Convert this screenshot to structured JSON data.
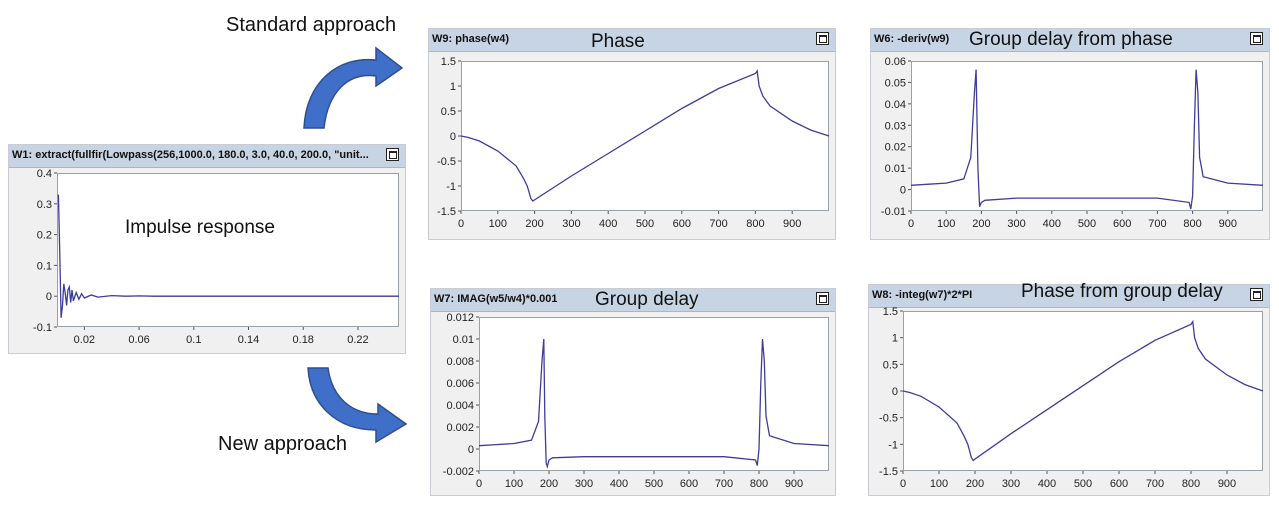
{
  "captions": {
    "standard": "Standard approach",
    "new": "New approach"
  },
  "colors": {
    "curve": "#3d3d9a",
    "arrow": "#3f6fc9",
    "titlebar": "#c6d4e4"
  },
  "windows": {
    "w1": {
      "title": "W1: extract(fullfir(Lowpass(256,1000.0, 180.0, 3.0, 40.0, 200.0, \"unit...",
      "label": "Impulse response",
      "xticks": [
        "0.02",
        "0.06",
        "0.1",
        "0.14",
        "0.18",
        "0.22"
      ],
      "yticks": [
        "0.4",
        "0.3",
        "0.2",
        "0.1",
        "0",
        "-0.1"
      ]
    },
    "w9": {
      "title": "W9: phase(w4)",
      "label": "Phase",
      "xticks": [
        "0",
        "100",
        "200",
        "300",
        "400",
        "500",
        "600",
        "700",
        "800",
        "900"
      ],
      "yticks": [
        "1.5",
        "1",
        "0.5",
        "0",
        "-0.5",
        "-1",
        "-1.5"
      ]
    },
    "w6": {
      "title": "W6: -deriv(w9)",
      "label": "Group delay from phase",
      "xticks": [
        "0",
        "100",
        "200",
        "300",
        "400",
        "500",
        "600",
        "700",
        "800",
        "900"
      ],
      "yticks": [
        "0.06",
        "0.05",
        "0.04",
        "0.03",
        "0.02",
        "0.01",
        "0",
        "-0.01"
      ]
    },
    "w7": {
      "title": "W7: IMAG(w5/w4)*0.001",
      "label": "Group delay",
      "xticks": [
        "0",
        "100",
        "200",
        "300",
        "400",
        "500",
        "600",
        "700",
        "800",
        "900"
      ],
      "yticks": [
        "0.012",
        "0.01",
        "0.008",
        "0.006",
        "0.004",
        "0.002",
        "0",
        "-0.002"
      ]
    },
    "w8": {
      "title": "W8: -integ(w7)*2*PI",
      "label": "Phase from group delay",
      "xticks": [
        "0",
        "100",
        "200",
        "300",
        "400",
        "500",
        "600",
        "700",
        "800",
        "900"
      ],
      "yticks": [
        "1.5",
        "1",
        "0.5",
        "0",
        "-0.5",
        "-1",
        "-1.5"
      ]
    }
  },
  "chart_data": [
    {
      "type": "line",
      "window": "w1",
      "x": [
        0.001,
        0.002,
        0.003,
        0.004,
        0.005,
        0.006,
        0.007,
        0.008,
        0.009,
        0.01,
        0.011,
        0.012,
        0.014,
        0.016,
        0.018,
        0.02,
        0.025,
        0.03,
        0.04,
        0.05,
        0.06,
        0.07,
        0.08,
        0.1,
        0.15,
        0.2,
        0.25
      ],
      "y": [
        0.33,
        0.15,
        -0.07,
        -0.03,
        0.04,
        0.01,
        -0.03,
        0.02,
        0.03,
        -0.02,
        0.02,
        -0.015,
        0.012,
        -0.01,
        0.008,
        -0.006,
        0.004,
        -0.003,
        0.002,
        0,
        0.001,
        0,
        0,
        0,
        0,
        0,
        0
      ],
      "xlim": [
        0,
        0.25
      ],
      "ylim": [
        -0.1,
        0.4
      ]
    },
    {
      "type": "line",
      "window": "w9",
      "x": [
        0,
        20,
        50,
        100,
        150,
        170,
        180,
        190,
        195,
        300,
        400,
        500,
        600,
        700,
        800,
        805,
        810,
        820,
        840,
        900,
        950,
        1000
      ],
      "y": [
        0,
        -0.03,
        -0.1,
        -0.3,
        -0.6,
        -0.85,
        -1.0,
        -1.25,
        -1.3,
        -0.8,
        -0.35,
        0.1,
        0.55,
        0.95,
        1.25,
        1.3,
        1.0,
        0.8,
        0.6,
        0.3,
        0.12,
        0.0
      ],
      "xlim": [
        0,
        1000
      ],
      "ylim": [
        -1.5,
        1.5
      ]
    },
    {
      "type": "line",
      "window": "w6",
      "x": [
        0,
        50,
        100,
        150,
        170,
        180,
        185,
        190,
        195,
        200,
        210,
        300,
        400,
        500,
        600,
        700,
        790,
        795,
        800,
        805,
        810,
        815,
        820,
        830,
        900,
        1000
      ],
      "y": [
        0.002,
        0.0025,
        0.003,
        0.005,
        0.015,
        0.045,
        0.056,
        0.01,
        -0.008,
        -0.006,
        -0.005,
        -0.004,
        -0.004,
        -0.004,
        -0.004,
        -0.004,
        -0.006,
        -0.009,
        -0.003,
        0.03,
        0.056,
        0.045,
        0.015,
        0.006,
        0.003,
        0.002
      ],
      "xlim": [
        0,
        1000
      ],
      "ylim": [
        -0.01,
        0.06
      ]
    },
    {
      "type": "line",
      "window": "w7",
      "x": [
        0,
        50,
        100,
        150,
        170,
        180,
        185,
        188,
        192,
        195,
        200,
        210,
        300,
        400,
        500,
        600,
        700,
        790,
        795,
        800,
        805,
        810,
        815,
        820,
        830,
        900,
        1000
      ],
      "y": [
        0.0003,
        0.0004,
        0.0005,
        0.0008,
        0.0025,
        0.008,
        0.01,
        0.003,
        -0.0013,
        -0.0016,
        -0.001,
        -0.0008,
        -0.0007,
        -0.0007,
        -0.0007,
        -0.0007,
        -0.0007,
        -0.001,
        -0.0015,
        0.0,
        0.006,
        0.01,
        0.008,
        0.003,
        0.0012,
        0.0005,
        0.0003
      ],
      "xlim": [
        0,
        1000
      ],
      "ylim": [
        -0.002,
        0.012
      ]
    },
    {
      "type": "line",
      "window": "w8",
      "x": [
        0,
        20,
        50,
        100,
        150,
        170,
        180,
        190,
        195,
        300,
        400,
        500,
        600,
        700,
        800,
        805,
        810,
        820,
        840,
        900,
        950,
        1000
      ],
      "y": [
        0,
        -0.03,
        -0.1,
        -0.3,
        -0.6,
        -0.85,
        -1.0,
        -1.25,
        -1.3,
        -0.8,
        -0.35,
        0.1,
        0.55,
        0.95,
        1.25,
        1.3,
        1.0,
        0.8,
        0.6,
        0.3,
        0.12,
        0.0
      ],
      "xlim": [
        0,
        1000
      ],
      "ylim": [
        -1.5,
        1.5
      ]
    }
  ]
}
